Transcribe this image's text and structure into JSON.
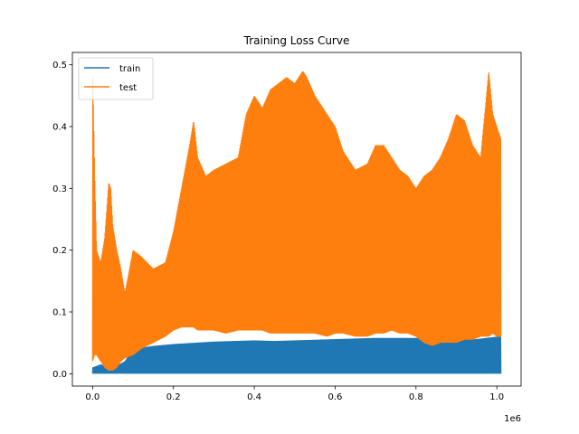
{
  "chart_data": {
    "type": "line",
    "title": "Training Loss Curve",
    "xlabel": "",
    "ylabel": "",
    "x_offset_text": "1e6",
    "xlim": [
      -50000,
      1060000
    ],
    "ylim": [
      -0.02,
      0.52
    ],
    "x_ticks": [
      0,
      200000,
      400000,
      600000,
      800000,
      1000000
    ],
    "x_tick_labels": [
      "0.0",
      "0.2",
      "0.4",
      "0.6",
      "0.8",
      "1.0"
    ],
    "y_ticks": [
      0.0,
      0.1,
      0.2,
      0.3,
      0.4,
      0.5
    ],
    "y_tick_labels": [
      "0.0",
      "0.1",
      "0.2",
      "0.3",
      "0.4",
      "0.5"
    ],
    "grid": false,
    "legend_position": "upper-left",
    "series": [
      {
        "name": "train",
        "color": "#1f77b4",
        "style": "dense-oscillating",
        "x": [
          0,
          20000,
          50000,
          80000,
          100000,
          150000,
          200000,
          250000,
          300000,
          350000,
          400000,
          450000,
          500000,
          550000,
          600000,
          650000,
          700000,
          750000,
          800000,
          850000,
          900000,
          950000,
          1000000,
          1010000
        ],
        "y_low": [
          0.0,
          0.0,
          0.0,
          0.0,
          0.0,
          0.0,
          0.0,
          0.0,
          0.0,
          0.0,
          0.0,
          0.0,
          0.0,
          0.0,
          0.0,
          0.0,
          0.0,
          0.0,
          0.0,
          0.0,
          0.0,
          0.0,
          0.0,
          0.0
        ],
        "y_high": [
          0.01,
          0.015,
          0.01,
          0.02,
          0.04,
          0.045,
          0.048,
          0.05,
          0.052,
          0.053,
          0.054,
          0.053,
          0.054,
          0.055,
          0.056,
          0.057,
          0.058,
          0.058,
          0.058,
          0.057,
          0.056,
          0.056,
          0.06,
          0.06
        ]
      },
      {
        "name": "test",
        "color": "#ff7f0e",
        "style": "dense-oscillating",
        "x": [
          0,
          5000,
          10000,
          20000,
          30000,
          40000,
          45000,
          50000,
          60000,
          70000,
          80000,
          100000,
          120000,
          150000,
          180000,
          200000,
          220000,
          240000,
          250000,
          260000,
          280000,
          300000,
          330000,
          360000,
          380000,
          400000,
          420000,
          440000,
          460000,
          480000,
          500000,
          520000,
          530000,
          550000,
          580000,
          600000,
          620000,
          650000,
          680000,
          700000,
          720000,
          740000,
          760000,
          780000,
          800000,
          820000,
          840000,
          860000,
          880000,
          900000,
          920000,
          940000,
          960000,
          980000,
          990000,
          1000000,
          1010000
        ],
        "y_low": [
          0.02,
          0.03,
          0.03,
          0.02,
          0.01,
          0.005,
          0.005,
          0.005,
          0.01,
          0.02,
          0.025,
          0.03,
          0.04,
          0.05,
          0.06,
          0.07,
          0.075,
          0.075,
          0.075,
          0.07,
          0.07,
          0.07,
          0.065,
          0.07,
          0.07,
          0.07,
          0.07,
          0.065,
          0.065,
          0.065,
          0.065,
          0.065,
          0.065,
          0.065,
          0.06,
          0.065,
          0.065,
          0.06,
          0.06,
          0.065,
          0.065,
          0.07,
          0.065,
          0.065,
          0.06,
          0.05,
          0.045,
          0.05,
          0.05,
          0.05,
          0.055,
          0.055,
          0.06,
          0.06,
          0.065,
          0.06,
          0.06
        ],
        "y_high": [
          0.5,
          0.33,
          0.2,
          0.18,
          0.22,
          0.31,
          0.3,
          0.24,
          0.2,
          0.17,
          0.13,
          0.2,
          0.19,
          0.17,
          0.18,
          0.23,
          0.3,
          0.37,
          0.41,
          0.35,
          0.32,
          0.33,
          0.34,
          0.35,
          0.42,
          0.45,
          0.43,
          0.46,
          0.47,
          0.48,
          0.47,
          0.49,
          0.48,
          0.45,
          0.42,
          0.4,
          0.36,
          0.33,
          0.34,
          0.37,
          0.37,
          0.35,
          0.33,
          0.32,
          0.3,
          0.32,
          0.33,
          0.35,
          0.38,
          0.42,
          0.41,
          0.37,
          0.35,
          0.49,
          0.42,
          0.4,
          0.38
        ]
      }
    ]
  }
}
